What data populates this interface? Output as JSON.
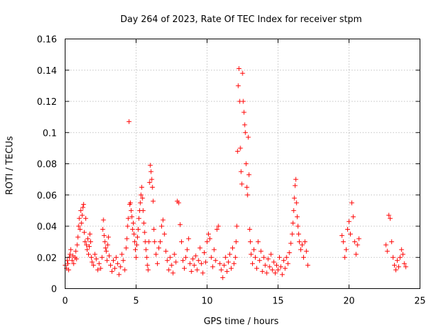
{
  "chart_data": {
    "type": "scatter",
    "title": "Day 264 of 2023, Rate Of TEC Index for receiver stpm",
    "xlabel": "GPS time / hours",
    "ylabel": "ROTI / TECUs",
    "xlim": [
      0,
      25
    ],
    "ylim": [
      0,
      0.16
    ],
    "xticks": [
      "0",
      "5",
      "10",
      "15",
      "20",
      "25"
    ],
    "yticks": [
      "0",
      "0.02",
      "0.04",
      "0.06",
      "0.08",
      "0.1",
      "0.12",
      "0.14",
      "0.16"
    ],
    "grid": true,
    "marker": "+",
    "color": "#ff0000",
    "series": [
      {
        "points": [
          [
            0.0,
            0.015
          ],
          [
            0.1,
            0.013
          ],
          [
            0.15,
            0.018
          ],
          [
            0.2,
            0.016
          ],
          [
            0.25,
            0.012
          ],
          [
            0.3,
            0.02
          ],
          [
            0.35,
            0.022
          ],
          [
            0.4,
            0.025
          ],
          [
            0.5,
            0.018
          ],
          [
            0.55,
            0.021
          ],
          [
            0.6,
            0.016
          ],
          [
            0.7,
            0.02
          ],
          [
            0.75,
            0.024
          ],
          [
            0.8,
            0.019
          ],
          [
            0.85,
            0.028
          ],
          [
            0.9,
            0.033
          ],
          [
            0.95,
            0.04
          ],
          [
            1.0,
            0.045
          ],
          [
            1.05,
            0.038
          ],
          [
            1.1,
            0.05
          ],
          [
            1.15,
            0.042
          ],
          [
            1.2,
            0.047
          ],
          [
            1.25,
            0.052
          ],
          [
            1.3,
            0.054
          ],
          [
            1.35,
            0.036
          ],
          [
            1.4,
            0.03
          ],
          [
            1.45,
            0.045
          ],
          [
            1.5,
            0.028
          ],
          [
            1.55,
            0.025
          ],
          [
            1.6,
            0.032
          ],
          [
            1.65,
            0.022
          ],
          [
            1.7,
            0.027
          ],
          [
            1.75,
            0.035
          ],
          [
            1.8,
            0.03
          ],
          [
            1.85,
            0.02
          ],
          [
            1.9,
            0.017
          ],
          [
            2.0,
            0.015
          ],
          [
            2.1,
            0.022
          ],
          [
            2.2,
            0.019
          ],
          [
            2.3,
            0.012
          ],
          [
            2.4,
            0.016
          ],
          [
            2.5,
            0.013
          ],
          [
            2.6,
            0.02
          ],
          [
            2.65,
            0.038
          ],
          [
            2.7,
            0.044
          ],
          [
            2.75,
            0.034
          ],
          [
            2.8,
            0.03
          ],
          [
            2.85,
            0.026
          ],
          [
            2.9,
            0.024
          ],
          [
            2.95,
            0.018
          ],
          [
            3.0,
            0.028
          ],
          [
            3.05,
            0.033
          ],
          [
            3.1,
            0.021
          ],
          [
            3.2,
            0.015
          ],
          [
            3.3,
            0.011
          ],
          [
            3.4,
            0.018
          ],
          [
            3.5,
            0.013
          ],
          [
            3.6,
            0.02
          ],
          [
            3.7,
            0.016
          ],
          [
            3.8,
            0.009
          ],
          [
            3.9,
            0.014
          ],
          [
            4.0,
            0.022
          ],
          [
            4.1,
            0.018
          ],
          [
            4.2,
            0.012
          ],
          [
            4.3,
            0.026
          ],
          [
            4.35,
            0.032
          ],
          [
            4.4,
            0.04
          ],
          [
            4.45,
            0.045
          ],
          [
            4.5,
            0.107
          ],
          [
            4.55,
            0.054
          ],
          [
            4.6,
            0.055
          ],
          [
            4.65,
            0.05
          ],
          [
            4.7,
            0.046
          ],
          [
            4.75,
            0.038
          ],
          [
            4.8,
            0.042
          ],
          [
            4.85,
            0.035
          ],
          [
            4.9,
            0.03
          ],
          [
            4.95,
            0.025
          ],
          [
            5.0,
            0.02
          ],
          [
            5.05,
            0.028
          ],
          [
            5.1,
            0.033
          ],
          [
            5.15,
            0.038
          ],
          [
            5.2,
            0.045
          ],
          [
            5.25,
            0.05
          ],
          [
            5.3,
            0.055
          ],
          [
            5.35,
            0.06
          ],
          [
            5.4,
            0.065
          ],
          [
            5.45,
            0.058
          ],
          [
            5.5,
            0.05
          ],
          [
            5.55,
            0.042
          ],
          [
            5.6,
            0.036
          ],
          [
            5.65,
            0.03
          ],
          [
            5.7,
            0.025
          ],
          [
            5.75,
            0.02
          ],
          [
            5.8,
            0.015
          ],
          [
            5.85,
            0.012
          ],
          [
            5.9,
            0.03
          ],
          [
            5.95,
            0.068
          ],
          [
            6.0,
            0.079
          ],
          [
            6.05,
            0.075
          ],
          [
            6.1,
            0.07
          ],
          [
            6.15,
            0.065
          ],
          [
            6.2,
            0.056
          ],
          [
            6.25,
            0.038
          ],
          [
            6.3,
            0.03
          ],
          [
            6.4,
            0.022
          ],
          [
            6.5,
            0.016
          ],
          [
            6.6,
            0.026
          ],
          [
            6.7,
            0.03
          ],
          [
            6.8,
            0.04
          ],
          [
            6.9,
            0.044
          ],
          [
            7.0,
            0.035
          ],
          [
            7.1,
            0.024
          ],
          [
            7.2,
            0.018
          ],
          [
            7.3,
            0.012
          ],
          [
            7.4,
            0.02
          ],
          [
            7.5,
            0.015
          ],
          [
            7.6,
            0.01
          ],
          [
            7.7,
            0.022
          ],
          [
            7.8,
            0.017
          ],
          [
            7.9,
            0.056
          ],
          [
            8.0,
            0.055
          ],
          [
            8.1,
            0.041
          ],
          [
            8.2,
            0.03
          ],
          [
            8.3,
            0.018
          ],
          [
            8.4,
            0.013
          ],
          [
            8.5,
            0.02
          ],
          [
            8.6,
            0.025
          ],
          [
            8.7,
            0.032
          ],
          [
            8.8,
            0.016
          ],
          [
            8.9,
            0.011
          ],
          [
            9.0,
            0.019
          ],
          [
            9.1,
            0.015
          ],
          [
            9.2,
            0.021
          ],
          [
            9.3,
            0.012
          ],
          [
            9.4,
            0.018
          ],
          [
            9.5,
            0.026
          ],
          [
            9.6,
            0.016
          ],
          [
            9.7,
            0.01
          ],
          [
            9.8,
            0.023
          ],
          [
            9.9,
            0.017
          ],
          [
            10.0,
            0.03
          ],
          [
            10.1,
            0.035
          ],
          [
            10.2,
            0.032
          ],
          [
            10.3,
            0.02
          ],
          [
            10.4,
            0.014
          ],
          [
            10.5,
            0.025
          ],
          [
            10.6,
            0.018
          ],
          [
            10.7,
            0.038
          ],
          [
            10.8,
            0.04
          ],
          [
            10.9,
            0.016
          ],
          [
            11.0,
            0.012
          ],
          [
            11.1,
            0.007
          ],
          [
            11.2,
            0.015
          ],
          [
            11.3,
            0.02
          ],
          [
            11.4,
            0.011
          ],
          [
            11.5,
            0.017
          ],
          [
            11.6,
            0.022
          ],
          [
            11.7,
            0.013
          ],
          [
            11.8,
            0.026
          ],
          [
            11.9,
            0.016
          ],
          [
            12.0,
            0.02
          ],
          [
            12.05,
            0.03
          ],
          [
            12.1,
            0.04
          ],
          [
            12.15,
            0.088
          ],
          [
            12.2,
            0.13
          ],
          [
            12.25,
            0.141
          ],
          [
            12.3,
            0.12
          ],
          [
            12.35,
            0.09
          ],
          [
            12.4,
            0.075
          ],
          [
            12.45,
            0.067
          ],
          [
            12.5,
            0.138
          ],
          [
            12.55,
            0.12
          ],
          [
            12.6,
            0.113
          ],
          [
            12.65,
            0.105
          ],
          [
            12.7,
            0.1
          ],
          [
            12.75,
            0.08
          ],
          [
            12.8,
            0.065
          ],
          [
            12.85,
            0.06
          ],
          [
            12.9,
            0.097
          ],
          [
            12.95,
            0.073
          ],
          [
            13.0,
            0.038
          ],
          [
            13.05,
            0.03
          ],
          [
            13.1,
            0.022
          ],
          [
            13.2,
            0.016
          ],
          [
            13.3,
            0.025
          ],
          [
            13.4,
            0.02
          ],
          [
            13.5,
            0.013
          ],
          [
            13.6,
            0.03
          ],
          [
            13.7,
            0.018
          ],
          [
            13.8,
            0.024
          ],
          [
            13.9,
            0.011
          ],
          [
            14.0,
            0.02
          ],
          [
            14.1,
            0.015
          ],
          [
            14.2,
            0.01
          ],
          [
            14.3,
            0.019
          ],
          [
            14.4,
            0.014
          ],
          [
            14.5,
            0.022
          ],
          [
            14.6,
            0.012
          ],
          [
            14.7,
            0.017
          ],
          [
            14.8,
            0.01
          ],
          [
            14.9,
            0.015
          ],
          [
            15.0,
            0.012
          ],
          [
            15.1,
            0.02
          ],
          [
            15.2,
            0.014
          ],
          [
            15.3,
            0.009
          ],
          [
            15.4,
            0.018
          ],
          [
            15.5,
            0.013
          ],
          [
            15.6,
            0.02
          ],
          [
            15.7,
            0.016
          ],
          [
            15.8,
            0.023
          ],
          [
            15.9,
            0.029
          ],
          [
            16.0,
            0.035
          ],
          [
            16.05,
            0.042
          ],
          [
            16.1,
            0.05
          ],
          [
            16.15,
            0.058
          ],
          [
            16.2,
            0.066
          ],
          [
            16.25,
            0.07
          ],
          [
            16.3,
            0.055
          ],
          [
            16.35,
            0.046
          ],
          [
            16.4,
            0.04
          ],
          [
            16.45,
            0.035
          ],
          [
            16.5,
            0.03
          ],
          [
            16.6,
            0.025
          ],
          [
            16.7,
            0.028
          ],
          [
            16.8,
            0.02
          ],
          [
            16.9,
            0.03
          ],
          [
            17.0,
            0.024
          ],
          [
            17.1,
            0.015
          ],
          [
            19.5,
            0.034
          ],
          [
            19.6,
            0.03
          ],
          [
            19.7,
            0.02
          ],
          [
            19.8,
            0.025
          ],
          [
            19.9,
            0.038
          ],
          [
            20.0,
            0.043
          ],
          [
            20.1,
            0.035
          ],
          [
            20.2,
            0.055
          ],
          [
            20.3,
            0.046
          ],
          [
            20.4,
            0.03
          ],
          [
            20.5,
            0.022
          ],
          [
            20.6,
            0.028
          ],
          [
            20.7,
            0.032
          ],
          [
            22.6,
            0.028
          ],
          [
            22.7,
            0.024
          ],
          [
            22.8,
            0.047
          ],
          [
            22.9,
            0.045
          ],
          [
            23.0,
            0.03
          ],
          [
            23.1,
            0.02
          ],
          [
            23.2,
            0.015
          ],
          [
            23.3,
            0.012
          ],
          [
            23.4,
            0.018
          ],
          [
            23.5,
            0.014
          ],
          [
            23.6,
            0.02
          ],
          [
            23.7,
            0.025
          ],
          [
            23.8,
            0.022
          ],
          [
            23.9,
            0.016
          ],
          [
            24.0,
            0.014
          ]
        ]
      }
    ]
  }
}
